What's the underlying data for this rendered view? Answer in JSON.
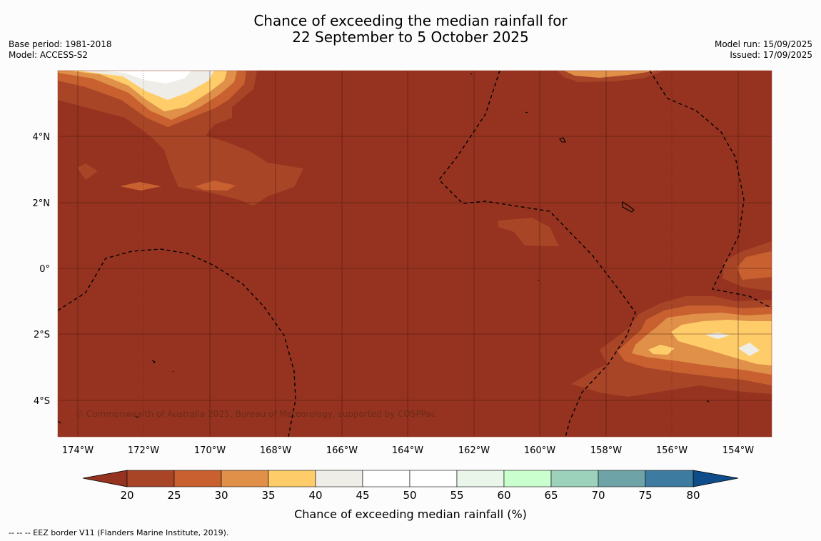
{
  "title": {
    "line1": "Chance of exceeding the median rainfall for",
    "line2": "22 September to 5 October 2025"
  },
  "meta_left": {
    "base_period": "Base period: 1981-2018",
    "model": "Model: ACCESS-S2"
  },
  "meta_right": {
    "model_run": "Model run: 15/09/2025",
    "issued": "Issued: 17/09/2025"
  },
  "map": {
    "copyright": "© Commonwealth of Australia 2025, Bureau of Meteorology, supported by COSPPac",
    "lon_labels": [
      "174°W",
      "172°W",
      "170°W",
      "168°W",
      "166°W",
      "164°W",
      "162°W",
      "160°W",
      "158°W",
      "156°W",
      "154°W"
    ],
    "lat_labels": [
      "4°N",
      "2°N",
      "0°",
      "2°S",
      "4°S"
    ]
  },
  "colorbar": {
    "ticks": [
      "20",
      "25",
      "30",
      "35",
      "40",
      "45",
      "50",
      "55",
      "60",
      "65",
      "70",
      "75",
      "80"
    ],
    "colors": [
      "#a84527",
      "#c8612f",
      "#e09048",
      "#fecd6a",
      "#efede7",
      "#ffffff",
      "#ffffff",
      "#eaf6ea",
      "#caffce",
      "#9cd2bc",
      "#6ea4a8",
      "#3e7ba0"
    ],
    "below_color": "#953320",
    "above_color": "#0f4d8a",
    "label": "Chance of exceeding median rainfall (%)"
  },
  "footer": "--  --  -- EEZ border V11 (Flanders Marine Institute, 2019)."
}
